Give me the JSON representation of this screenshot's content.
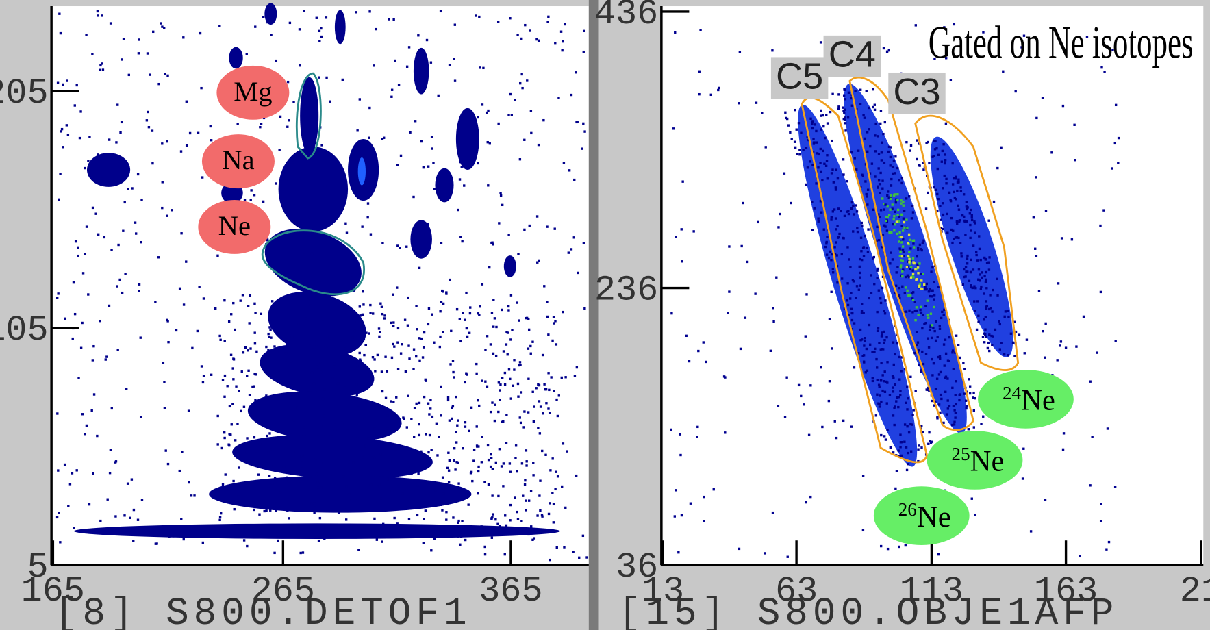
{
  "panels": [
    {
      "yticks": [
        "205",
        "105",
        "5"
      ],
      "xticks": [
        "165",
        "265",
        "365"
      ],
      "x_axis_title": "[8] S800.DETOF1",
      "labels": [
        "Mg",
        "Na",
        "Ne"
      ]
    },
    {
      "title": "Gated on Ne isotopes",
      "yticks": [
        "436",
        "236",
        "36"
      ],
      "xticks": [
        "13",
        "63",
        "113",
        "163",
        "21"
      ],
      "x_axis_title": "[15] S800.OBJE1AFP",
      "gates": [
        "C5",
        "C4",
        "C3"
      ],
      "isotopes": [
        {
          "mass": "24",
          "symbol": "Ne"
        },
        {
          "mass": "25",
          "symbol": "Ne"
        },
        {
          "mass": "26",
          "symbol": "Ne"
        }
      ]
    }
  ]
}
